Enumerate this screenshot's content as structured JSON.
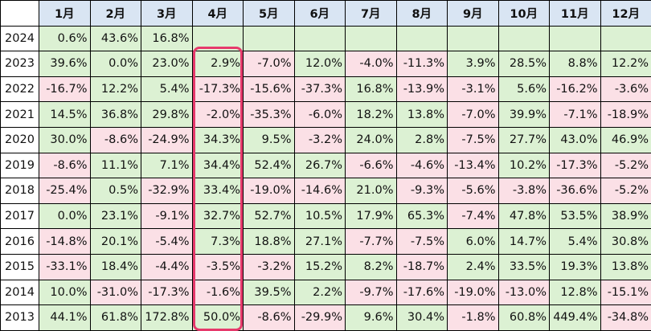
{
  "months": [
    "1月",
    "2月",
    "3月",
    "4月",
    "5月",
    "6月",
    "7月",
    "8月",
    "9月",
    "10月",
    "11月",
    "12月"
  ],
  "rows": [
    {
      "year": "2024",
      "values": [
        "0.6%",
        "43.6%",
        "16.8%",
        "",
        "",
        "",
        "",
        "",
        "",
        "",
        "",
        ""
      ]
    },
    {
      "year": "2023",
      "values": [
        "39.6%",
        "0.0%",
        "23.0%",
        "2.9%",
        "-7.0%",
        "12.0%",
        "-4.0%",
        "-11.3%",
        "3.9%",
        "28.5%",
        "8.8%",
        "12.2%"
      ]
    },
    {
      "year": "2022",
      "values": [
        "-16.7%",
        "12.2%",
        "5.4%",
        "-17.3%",
        "-15.6%",
        "-37.3%",
        "16.8%",
        "-13.9%",
        "-3.1%",
        "5.6%",
        "-16.2%",
        "-3.6%"
      ]
    },
    {
      "year": "2021",
      "values": [
        "14.5%",
        "36.8%",
        "29.8%",
        "-2.0%",
        "-35.3%",
        "-6.0%",
        "18.2%",
        "13.8%",
        "-7.0%",
        "39.9%",
        "-7.1%",
        "-18.9%"
      ]
    },
    {
      "year": "2020",
      "values": [
        "30.0%",
        "-8.6%",
        "-24.9%",
        "34.3%",
        "9.5%",
        "-3.2%",
        "24.0%",
        "2.8%",
        "-7.5%",
        "27.7%",
        "43.0%",
        "46.9%"
      ]
    },
    {
      "year": "2019",
      "values": [
        "-8.6%",
        "11.1%",
        "7.1%",
        "34.4%",
        "52.4%",
        "26.7%",
        "-6.6%",
        "-4.6%",
        "-13.4%",
        "10.2%",
        "-17.3%",
        "-5.2%"
      ]
    },
    {
      "year": "2018",
      "values": [
        "-25.4%",
        "0.5%",
        "-32.9%",
        "33.4%",
        "-19.0%",
        "-14.6%",
        "21.0%",
        "-9.3%",
        "-5.6%",
        "-3.8%",
        "-36.6%",
        "-5.2%"
      ]
    },
    {
      "year": "2017",
      "values": [
        "0.0%",
        "23.1%",
        "-9.1%",
        "32.7%",
        "52.7%",
        "10.5%",
        "17.9%",
        "65.3%",
        "-7.4%",
        "47.8%",
        "53.5%",
        "38.9%"
      ]
    },
    {
      "year": "2016",
      "values": [
        "-14.8%",
        "20.1%",
        "-5.4%",
        "7.3%",
        "18.8%",
        "27.1%",
        "-7.7%",
        "-7.5%",
        "6.0%",
        "14.7%",
        "5.4%",
        "30.8%"
      ]
    },
    {
      "year": "2015",
      "values": [
        "-33.1%",
        "18.4%",
        "-4.4%",
        "-3.5%",
        "-3.2%",
        "15.2%",
        "8.2%",
        "-18.7%",
        "2.4%",
        "33.5%",
        "19.3%",
        "13.8%"
      ]
    },
    {
      "year": "2014",
      "values": [
        "10.0%",
        "-31.0%",
        "-17.3%",
        "-1.6%",
        "39.5%",
        "2.2%",
        "-9.7%",
        "-17.6%",
        "-19.0%",
        "-13.0%",
        "12.8%",
        "-15.1%"
      ]
    },
    {
      "year": "2013",
      "values": [
        "44.1%",
        "61.8%",
        "172.8%",
        "50.0%",
        "-8.6%",
        "-29.9%",
        "9.6%",
        "30.4%",
        "-1.8%",
        "60.8%",
        "449.4%",
        "-34.8%"
      ]
    }
  ],
  "highlighted_month": "4月",
  "colors": {
    "header_bg": "#d9e5f3",
    "positive_bg": "#dcf1d3",
    "negative_bg": "#fbe0e6",
    "highlight_border": "#e6396b"
  }
}
